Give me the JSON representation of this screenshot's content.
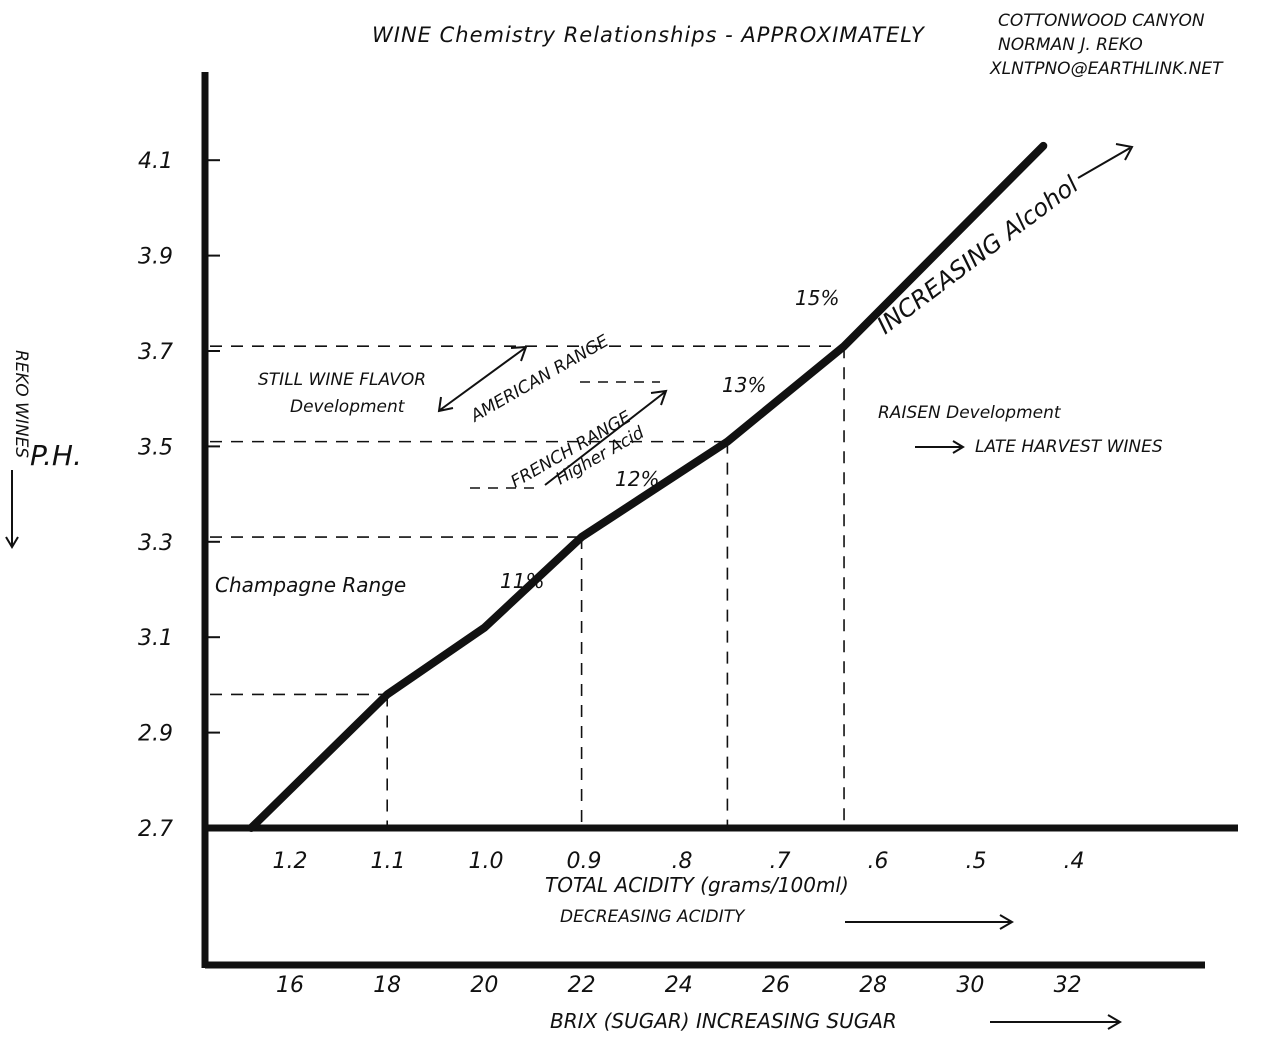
{
  "chart_data": {
    "type": "line",
    "title": "WINE Chemistry Relationships - APPROXIMATELY",
    "credit": [
      "COTTONWOOD CANYON",
      "NORMAN J. REKO",
      "XLNTPNO@EARTHLINK.NET"
    ],
    "ylabel": "P.H.",
    "ylabel_side": "REKO WINES",
    "xlabel_acidity": "TOTAL ACIDITY (grams/100ml)",
    "xlabel_acidity_note": "DECREASING ACIDITY",
    "xlabel_brix": "BRIX (SUGAR) INCREASING SUGAR",
    "ylim": [
      2.7,
      4.1
    ],
    "y_ticks": [
      "4.1",
      "3.9",
      "3.7",
      "3.5",
      "3.3",
      "3.1",
      "2.9",
      "2.7"
    ],
    "acidity_ticks": [
      "1.2",
      "1.1",
      "1.0",
      "0.9",
      ".8",
      ".7",
      ".6",
      ".5",
      ".4"
    ],
    "brix_ticks": [
      "16",
      "18",
      "20",
      "22",
      "24",
      "26",
      "28",
      "30",
      "32"
    ],
    "series": [
      {
        "name": "Increasing Alcohol",
        "x_brix": [
          15.2,
          18,
          20,
          22,
          25,
          27.4,
          31.5
        ],
        "y_ph": [
          2.7,
          2.98,
          3.12,
          3.31,
          3.51,
          3.71,
          4.13
        ]
      }
    ],
    "reference_points": [
      {
        "brix": 18,
        "ph": 2.98
      },
      {
        "brix": 22,
        "ph": 3.31
      },
      {
        "brix": 25,
        "ph": 3.51
      },
      {
        "brix": 27.4,
        "ph": 3.71
      }
    ],
    "annotations": {
      "alcohol": "INCREASING Alcohol",
      "pct11": "11%",
      "pct12": "12%",
      "pct13": "13%",
      "pct15": "15%",
      "champagne": "Champagne Range",
      "still_wine_1": "STILL WINE FLAVOR",
      "still_wine_2": "Development",
      "american": "AMERICAN RANGE",
      "french": "FRENCH RANGE",
      "higher_acid": "Higher Acid",
      "raisin": "RAISEN Development",
      "late_harvest": "LATE HARVEST WINES"
    },
    "grid": false
  }
}
